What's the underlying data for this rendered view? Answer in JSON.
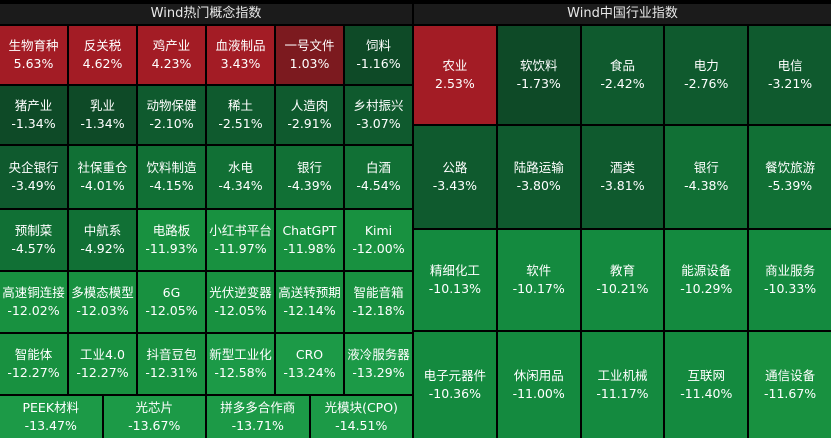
{
  "chart_data": [
    {
      "type": "heatmap",
      "title": "Wind热门概念指数",
      "colors": {
        "up_strong": "#9a1620",
        "up_medium": "#a3262c",
        "up_light": "#7a1a1e",
        "down_slight": "#0d4f2a",
        "down_medium": "#10773a",
        "down_strong": "#1b8e45"
      },
      "rows": [
        [
          {
            "label": "生物育种",
            "value": "5.63%"
          },
          {
            "label": "反关税",
            "value": "4.62%"
          },
          {
            "label": "鸡产业",
            "value": "4.23%"
          },
          {
            "label": "血液制品",
            "value": "3.43%"
          },
          {
            "label": "一号文件",
            "value": "1.03%"
          },
          {
            "label": "饲料",
            "value": "-1.16%"
          }
        ],
        [
          {
            "label": "猪产业",
            "value": "-1.34%"
          },
          {
            "label": "乳业",
            "value": "-1.34%"
          },
          {
            "label": "动物保健",
            "value": "-2.10%"
          },
          {
            "label": "稀土",
            "value": "-2.51%"
          },
          {
            "label": "人造肉",
            "value": "-2.91%"
          },
          {
            "label": "乡村振兴",
            "value": "-3.07%"
          }
        ],
        [
          {
            "label": "央企银行",
            "value": "-3.49%"
          },
          {
            "label": "社保重仓",
            "value": "-4.01%"
          },
          {
            "label": "饮料制造",
            "value": "-4.15%"
          },
          {
            "label": "水电",
            "value": "-4.34%"
          },
          {
            "label": "银行",
            "value": "-4.39%"
          },
          {
            "label": "白酒",
            "value": "-4.54%"
          }
        ],
        [
          {
            "label": "预制菜",
            "value": "-4.57%"
          },
          {
            "label": "中航系",
            "value": "-4.92%"
          },
          {
            "label": "电路板",
            "value": "-11.93%"
          },
          {
            "label": "小红书平台",
            "value": "-11.97%"
          },
          {
            "label": "ChatGPT",
            "value": "-11.98%"
          },
          {
            "label": "Kimi",
            "value": "-12.00%"
          }
        ],
        [
          {
            "label": "高速铜连接",
            "value": "-12.02%"
          },
          {
            "label": "多模态模型",
            "value": "-12.03%"
          },
          {
            "label": "6G",
            "value": "-12.05%"
          },
          {
            "label": "光伏逆变器",
            "value": "-12.05%"
          },
          {
            "label": "高送转预期",
            "value": "-12.14%"
          },
          {
            "label": "智能音箱",
            "value": "-12.18%"
          }
        ],
        [
          {
            "label": "智能体",
            "value": "-12.27%"
          },
          {
            "label": "工业4.0",
            "value": "-12.27%"
          },
          {
            "label": "抖音豆包",
            "value": "-12.31%"
          },
          {
            "label": "新型工业化",
            "value": "-12.58%"
          },
          {
            "label": "CRO",
            "value": "-13.24%"
          },
          {
            "label": "液冷服务器",
            "value": "-13.29%"
          }
        ],
        [
          {
            "label": "PEEK材料",
            "value": "-13.47%"
          },
          {
            "label": "光芯片",
            "value": "-13.67%"
          },
          {
            "label": "拼多多合作商",
            "value": "-13.71%"
          },
          {
            "label": "光模块(CPO)",
            "value": "-14.51%"
          }
        ]
      ]
    },
    {
      "type": "heatmap",
      "title": "Wind中国行业指数",
      "rows": [
        [
          {
            "label": "农业",
            "value": "2.53%"
          },
          {
            "label": "软饮料",
            "value": "-1.73%"
          },
          {
            "label": "食品",
            "value": "-2.42%"
          },
          {
            "label": "电力",
            "value": "-2.76%"
          },
          {
            "label": "电信",
            "value": "-3.21%"
          }
        ],
        [
          {
            "label": "公路",
            "value": "-3.43%"
          },
          {
            "label": "陆路运输",
            "value": "-3.80%"
          },
          {
            "label": "酒类",
            "value": "-3.81%"
          },
          {
            "label": "银行",
            "value": "-4.38%"
          },
          {
            "label": "餐饮旅游",
            "value": "-5.39%"
          }
        ],
        [
          {
            "label": "精细化工",
            "value": "-10.13%"
          },
          {
            "label": "软件",
            "value": "-10.17%"
          },
          {
            "label": "教育",
            "value": "-10.21%"
          },
          {
            "label": "能源设备",
            "value": "-10.29%"
          },
          {
            "label": "商业服务",
            "value": "-10.33%"
          }
        ],
        [
          {
            "label": "电子元器件",
            "value": "-10.36%"
          },
          {
            "label": "休闲用品",
            "value": "-11.00%"
          },
          {
            "label": "工业机械",
            "value": "-11.17%"
          },
          {
            "label": "互联网",
            "value": "-11.40%"
          },
          {
            "label": "通信设备",
            "value": "-11.67%"
          }
        ]
      ]
    }
  ]
}
